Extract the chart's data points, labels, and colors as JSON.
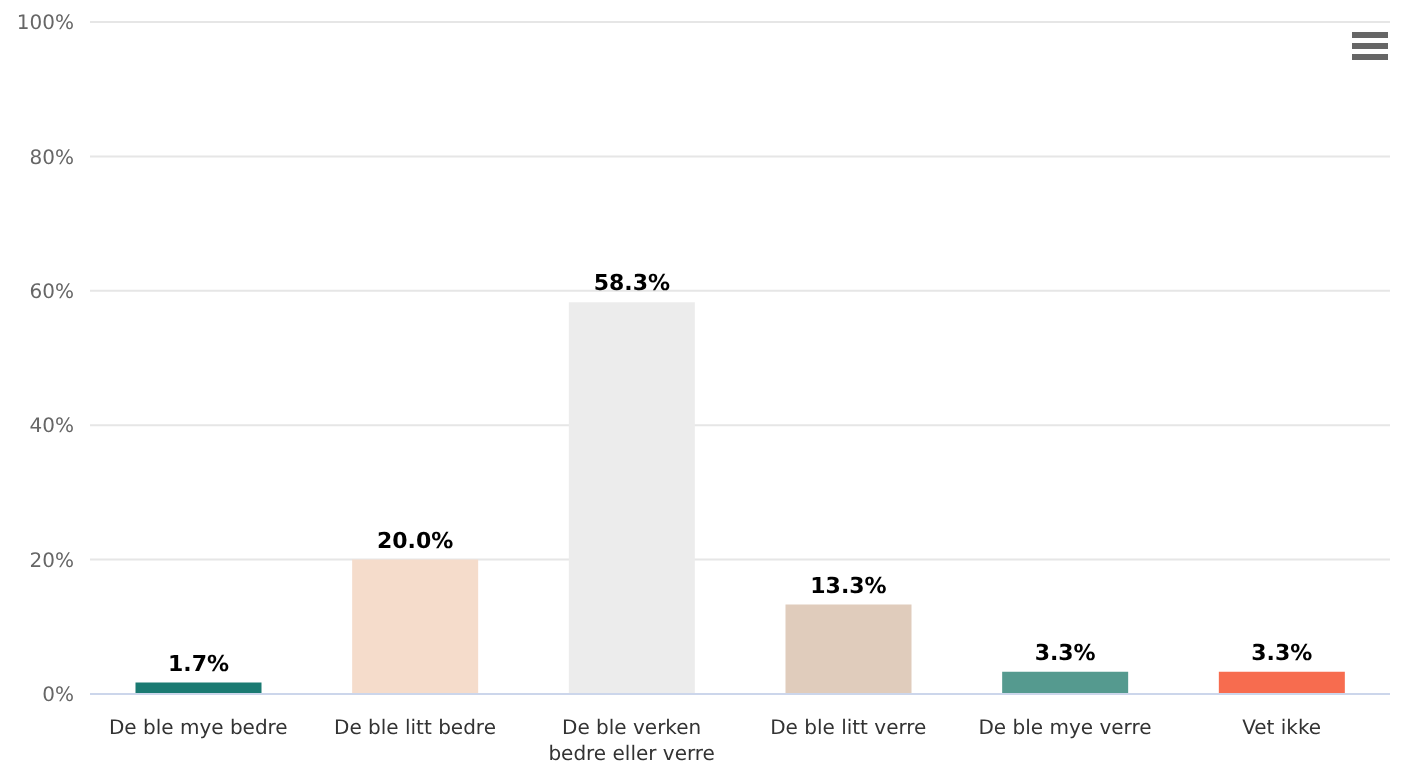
{
  "chart_data": {
    "type": "bar",
    "categories": [
      "De ble mye bedre",
      "De ble litt bedre",
      "De ble verken bedre eller verre",
      "De ble litt verre",
      "De ble mye verre",
      "Vet ikke"
    ],
    "values": [
      1.7,
      20.0,
      58.3,
      13.3,
      3.3,
      3.3
    ],
    "colors": [
      "#1a7a72",
      "#f5dccb",
      "#ececec",
      "#e0ccbc",
      "#559a8f",
      "#f76c4f"
    ],
    "value_labels": [
      "1.7%",
      "20.0%",
      "58.3%",
      "13.3%",
      "3.3%",
      "3.3%"
    ],
    "ylim": [
      0,
      100
    ],
    "yticks": [
      {
        "value": 0,
        "label": "0%"
      },
      {
        "value": 20,
        "label": "20%"
      },
      {
        "value": 40,
        "label": "40%"
      },
      {
        "value": 60,
        "label": "60%"
      },
      {
        "value": 80,
        "label": "80%"
      },
      {
        "value": 100,
        "label": "100%"
      }
    ],
    "grid": "y"
  }
}
